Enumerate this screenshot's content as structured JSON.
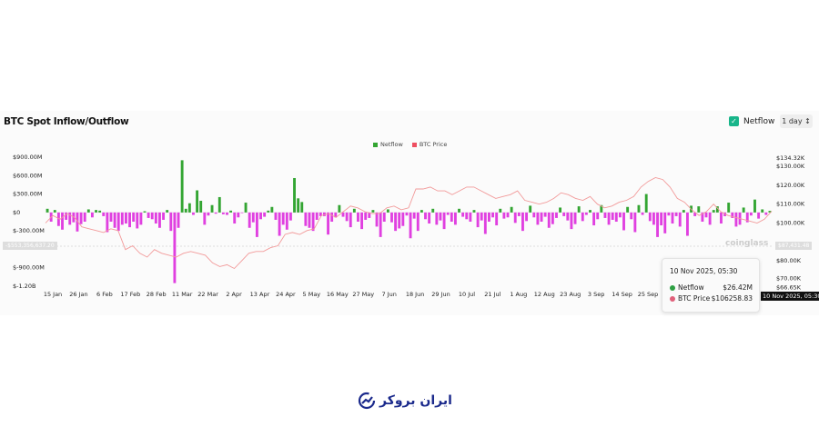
{
  "header": {
    "title": "BTC Spot Inflow/Outflow",
    "netflow_toggle": "Netflow",
    "range": "1 day ↕"
  },
  "watermark": "coinglass",
  "crosshair": {
    "left_value": "-$553,356,637.20",
    "right_value": "$87,431.48",
    "x_label": "10 Nov 2025, 05:30"
  },
  "tooltip": {
    "date": "10 Nov 2025, 05:30",
    "rows": [
      {
        "label": "Netflow",
        "value": "$26.42M",
        "color": "#2ea043"
      },
      {
        "label": "BTC Price",
        "value": "$106258.83",
        "color": "#e0607a"
      }
    ]
  },
  "brand": {
    "logo_text": "ایران بروکر"
  },
  "colors": {
    "inflow": "#33a532",
    "outflow": "#e040e0",
    "price": "#f29a9a"
  },
  "chart_data": {
    "type": "bar+line",
    "title": "BTC Spot Inflow/Outflow",
    "legend": [
      {
        "name": "Netflow",
        "color": "#33a532"
      },
      {
        "name": "BTC Price",
        "color": "#ee4f61"
      }
    ],
    "legend_position": "top-center",
    "y_left": {
      "ticks": [
        900,
        600,
        300,
        0,
        -300,
        -900,
        -1200
      ],
      "labels": [
        "$900.00M",
        "$600.00M",
        "$300.00M",
        "$0",
        "$-300.00M",
        "$-900.00M",
        "$-1.20B"
      ],
      "range": [
        -1200,
        900
      ],
      "unit": "M USD"
    },
    "y_right": {
      "ticks": [
        134.32,
        130,
        120,
        110,
        100,
        80,
        70,
        66.65
      ],
      "labels": [
        "$134.32K",
        "$130.00K",
        "$120.00K",
        "$110.00K",
        "$100.00K",
        "$80.00K",
        "$70.00K",
        "$66.65K"
      ],
      "range": [
        66.65,
        134.32
      ],
      "unit": "K USD"
    },
    "x_ticks": [
      "15 Jan",
      "26 Jan",
      "6 Feb",
      "17 Feb",
      "28 Feb",
      "11 Mar",
      "22 Mar",
      "2 Apr",
      "13 Apr",
      "24 Apr",
      "5 May",
      "16 May",
      "27 May",
      "7 Jun",
      "18 Jun",
      "29 Jun",
      "10 Jul",
      "21 Jul",
      "1 Aug",
      "12 Aug",
      "23 Aug",
      "3 Sep",
      "14 Sep",
      "25 Sep"
    ],
    "netflow": [
      60,
      -150,
      40,
      -220,
      -280,
      -120,
      -200,
      -160,
      -310,
      -190,
      -150,
      50,
      -80,
      40,
      30,
      -60,
      -320,
      -150,
      -250,
      -300,
      -200,
      -180,
      -240,
      -150,
      -260,
      -200,
      20,
      -90,
      -110,
      -180,
      -250,
      -120,
      40,
      -300,
      -1150,
      -250,
      850,
      60,
      150,
      -40,
      360,
      190,
      -200,
      -50,
      120,
      -20,
      250,
      -30,
      -40,
      30,
      -180,
      -80,
      -10,
      160,
      -250,
      -160,
      -400,
      -110,
      -70,
      30,
      90,
      -120,
      -380,
      -200,
      -280,
      -130,
      560,
      230,
      170,
      -220,
      -250,
      -300,
      -120,
      -60,
      -60,
      -360,
      -150,
      -80,
      120,
      -70,
      -140,
      -240,
      60,
      -150,
      -270,
      -120,
      -90,
      40,
      -230,
      -400,
      -150,
      50,
      -160,
      -300,
      -260,
      -220,
      -50,
      -420,
      -100,
      -300,
      40,
      -110,
      -180,
      60,
      -200,
      -130,
      -270,
      -40,
      -150,
      -200,
      60,
      -70,
      -110,
      -150,
      40,
      -240,
      -130,
      -350,
      -150,
      -80,
      -210,
      60,
      -100,
      -80,
      90,
      -170,
      -60,
      -300,
      -140,
      110,
      -80,
      -200,
      -150,
      -70,
      -250,
      -190,
      -90,
      80,
      -60,
      -130,
      -270,
      -190,
      100,
      -140,
      -40,
      40,
      -210,
      -110,
      120,
      -90,
      -200,
      -120,
      -150,
      -80,
      -290,
      90,
      -110,
      -320,
      120,
      -40,
      300,
      -140,
      -200,
      -400,
      -210,
      -340,
      -50,
      -180,
      -60,
      -230,
      40,
      -380,
      110,
      -60,
      100,
      -150,
      -80,
      -200,
      40,
      100,
      -180,
      -60,
      160,
      -90,
      -230,
      -200,
      80,
      -160,
      -50,
      210,
      -100,
      50,
      -40,
      26
    ],
    "price": [
      100,
      104,
      102,
      105,
      103,
      98,
      97,
      96,
      95,
      97,
      96,
      86,
      88,
      84,
      82,
      86,
      84,
      83,
      82,
      84,
      85,
      84,
      83,
      79,
      77,
      78,
      76,
      80,
      84,
      85,
      85,
      87,
      88,
      94,
      95,
      94,
      96,
      97,
      104,
      105,
      103,
      106,
      109,
      108,
      106,
      105,
      105,
      108,
      109,
      107,
      108,
      118,
      118,
      119,
      117,
      117,
      115,
      117,
      119,
      119,
      117,
      115,
      113,
      114,
      115,
      117,
      112,
      111,
      110,
      111,
      113,
      116,
      115,
      113,
      112,
      114,
      110,
      108,
      109,
      111,
      112,
      114,
      119,
      122,
      124,
      123,
      119,
      113,
      111,
      107,
      104,
      106,
      110,
      106,
      104,
      103,
      102,
      101,
      100,
      102,
      106.26
    ]
  }
}
